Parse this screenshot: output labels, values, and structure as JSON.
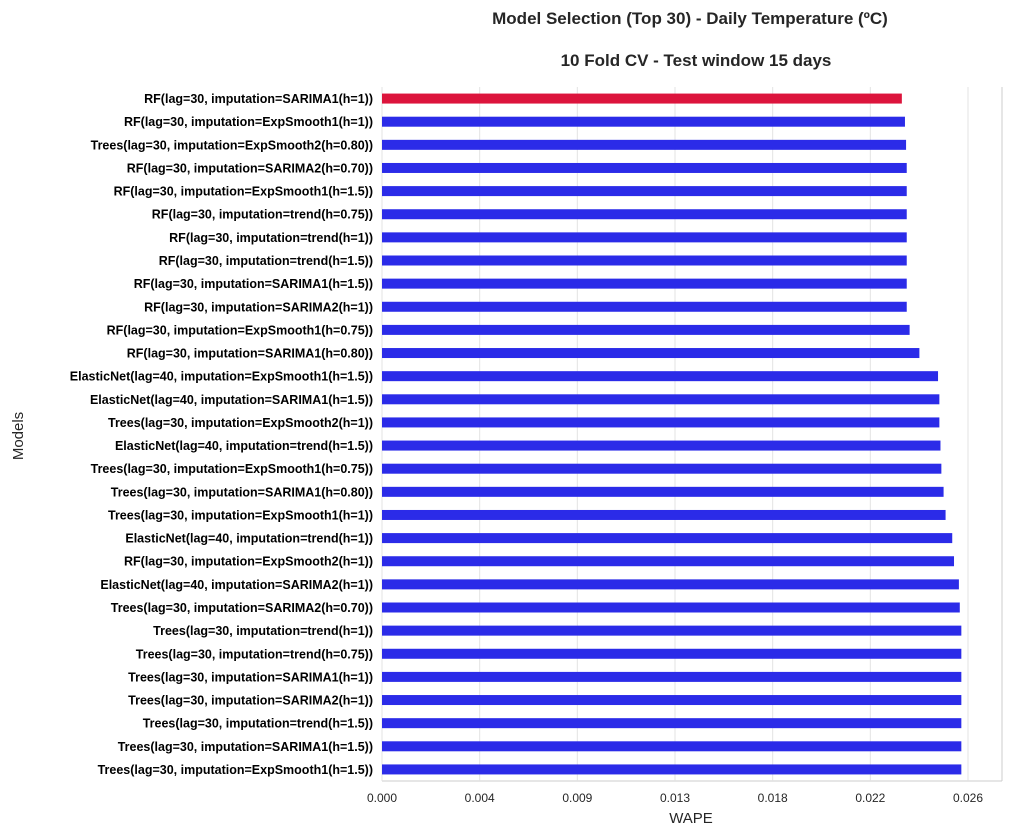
{
  "chart_data": {
    "type": "bar",
    "orientation": "horizontal",
    "title": "Model Selection (Top 30) - Daily Temperature (ºC)",
    "subtitle": "10 Fold CV - Test window 15 days",
    "xlabel": "WAPE",
    "ylabel": "Models",
    "xlim": [
      0,
      0.0264
    ],
    "xticks": [
      0.0,
      0.0044,
      0.0088,
      0.0132,
      0.0176,
      0.022,
      0.0264
    ],
    "xtick_labels": [
      "0.000",
      "0.004",
      "0.009",
      "0.013",
      "0.018",
      "0.022",
      "0.026"
    ],
    "grid": "vertical",
    "colors": {
      "best": "#dc143c",
      "default": "#2b2be8"
    },
    "categories": [
      "RF(lag=30, imputation=SARIMA1(h=1))",
      "RF(lag=30, imputation=ExpSmooth1(h=1))",
      "Trees(lag=30, imputation=ExpSmooth2(h=0.80))",
      "RF(lag=30, imputation=SARIMA2(h=0.70))",
      "RF(lag=30, imputation=ExpSmooth1(h=1.5))",
      "RF(lag=30, imputation=trend(h=0.75))",
      "RF(lag=30, imputation=trend(h=1))",
      "RF(lag=30, imputation=trend(h=1.5))",
      "RF(lag=30, imputation=SARIMA1(h=1.5))",
      "RF(lag=30, imputation=SARIMA2(h=1))",
      "RF(lag=30, imputation=ExpSmooth1(h=0.75))",
      "RF(lag=30, imputation=SARIMA1(h=0.80))",
      "ElasticNet(lag=40, imputation=ExpSmooth1(h=1.5))",
      "ElasticNet(lag=40, imputation=SARIMA1(h=1.5))",
      "Trees(lag=30, imputation=ExpSmooth2(h=1))",
      "ElasticNet(lag=40, imputation=trend(h=1.5))",
      "Trees(lag=30, imputation=ExpSmooth1(h=0.75))",
      "Trees(lag=30, imputation=SARIMA1(h=0.80))",
      "Trees(lag=30, imputation=ExpSmooth1(h=1))",
      "ElasticNet(lag=40, imputation=trend(h=1))",
      "RF(lag=30, imputation=ExpSmooth2(h=1))",
      "ElasticNet(lag=40, imputation=SARIMA2(h=1))",
      "Trees(lag=30, imputation=SARIMA2(h=0.70))",
      "Trees(lag=30, imputation=trend(h=1))",
      "Trees(lag=30, imputation=trend(h=0.75))",
      "Trees(lag=30, imputation=SARIMA1(h=1))",
      "Trees(lag=30, imputation=SARIMA2(h=1))",
      "Trees(lag=30, imputation=trend(h=1.5))",
      "Trees(lag=30, imputation=SARIMA1(h=1.5))",
      "Trees(lag=30, imputation=ExpSmooth1(h=1.5))"
    ],
    "values": [
      0.02342,
      0.02356,
      0.02361,
      0.02364,
      0.02364,
      0.02364,
      0.02364,
      0.02364,
      0.02364,
      0.02364,
      0.02377,
      0.02421,
      0.02505,
      0.02511,
      0.02511,
      0.02516,
      0.0252,
      0.0253,
      0.02539,
      0.02569,
      0.02577,
      0.02599,
      0.02603,
      0.0261,
      0.0261,
      0.0261,
      0.0261,
      0.0261,
      0.0261,
      0.0261
    ]
  }
}
